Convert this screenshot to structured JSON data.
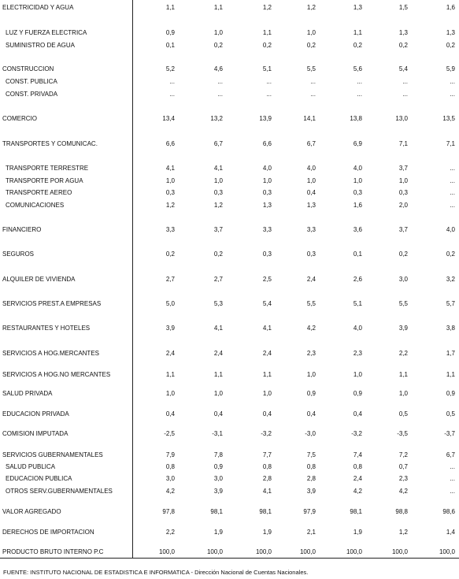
{
  "table": {
    "rows": [
      [
        "ELECTRICIDAD Y AGUA",
        "1,1",
        "1,1",
        "1,2",
        "1,2",
        "1,3",
        "1,5",
        "1,6"
      ],
      [
        "LUZ Y FUERZA ELECTRICA",
        "0,9",
        "1,0",
        "1,1",
        "1,0",
        "1,1",
        "1,3",
        "1,3"
      ],
      [
        "SUMINISTRO DE AGUA",
        "0,1",
        "0,2",
        "0,2",
        "0,2",
        "0,2",
        "0,2",
        "0,2"
      ],
      [
        "CONSTRUCCION",
        "5,2",
        "4,6",
        "5,1",
        "5,5",
        "5,6",
        "5,4",
        "5,9"
      ],
      [
        "CONST. PUBLICA",
        "...",
        "...",
        "...",
        "...",
        "...",
        "...",
        "..."
      ],
      [
        "CONST. PRIVADA",
        "...",
        "...",
        "...",
        "...",
        "...",
        "...",
        "..."
      ],
      [
        "COMERCIO",
        "13,4",
        "13,2",
        "13,9",
        "14,1",
        "13,8",
        "13,0",
        "13,5"
      ],
      [
        "TRANSPORTES Y COMUNICAC.",
        "6,6",
        "6,7",
        "6,6",
        "6,7",
        "6,9",
        "7,1",
        "7,1"
      ],
      [
        "TRANSPORTE TERRESTRE",
        "4,1",
        "4,1",
        "4,0",
        "4,0",
        "4,0",
        "3,7",
        "..."
      ],
      [
        "TRANSPORTE POR AGUA",
        "1,0",
        "1,0",
        "1,0",
        "1,0",
        "1,0",
        "1,0",
        "..."
      ],
      [
        "TRANSPORTE AEREO",
        "0,3",
        "0,3",
        "0,3",
        "0,4",
        "0,3",
        "0,3",
        "..."
      ],
      [
        "COMUNICACIONES",
        "1,2",
        "1,2",
        "1,3",
        "1,3",
        "1,6",
        "2,0",
        "..."
      ],
      [
        "FINANCIERO",
        "3,3",
        "3,7",
        "3,3",
        "3,3",
        "3,6",
        "3,7",
        "4,0"
      ],
      [
        "SEGUROS",
        "0,2",
        "0,2",
        "0,3",
        "0,3",
        "0,1",
        "0,2",
        "0,2"
      ],
      [
        "ALQUILER DE VIVIENDA",
        "2,7",
        "2,7",
        "2,5",
        "2,4",
        "2,6",
        "3,0",
        "3,2"
      ],
      [
        "SERVICIOS PREST.A EMPRESAS",
        "5,0",
        "5,3",
        "5,4",
        "5,5",
        "5,1",
        "5,5",
        "5,7"
      ],
      [
        "RESTAURANTES Y HOTELES",
        "3,9",
        "4,1",
        "4,1",
        "4,2",
        "4,0",
        "3,9",
        "3,8"
      ],
      [
        "SERVICIOS A HOG.MERCANTES",
        "2,4",
        "2,4",
        "2,4",
        "2,3",
        "2,3",
        "2,2",
        "1,7"
      ],
      [
        "SERVICIOS A HOG.NO MERCANTES",
        "1,1",
        "1,1",
        "1,1",
        "1,0",
        "1,0",
        "1,1",
        "1,1"
      ],
      [
        "SALUD PRIVADA",
        "1,0",
        "1,0",
        "1,0",
        "0,9",
        "0,9",
        "1,0",
        "0,9"
      ],
      [
        "EDUCACION PRIVADA",
        "0,4",
        "0,4",
        "0,4",
        "0,4",
        "0,4",
        "0,5",
        "0,5"
      ],
      [
        "COMISION IMPUTADA",
        "-2,5",
        "-3,1",
        "-3,2",
        "-3,0",
        "-3,2",
        "-3,5",
        "-3,7"
      ],
      [
        "SERVICIOS GUBERNAMENTALES",
        "7,9",
        "7,8",
        "7,7",
        "7,5",
        "7,4",
        "7,2",
        "6,7"
      ],
      [
        "SALUD PUBLICA",
        "0,8",
        "0,9",
        "0,8",
        "0,8",
        "0,8",
        "0,7",
        "..."
      ],
      [
        "EDUCACION PUBLICA",
        "3,0",
        "3,0",
        "2,8",
        "2,8",
        "2,4",
        "2,3",
        "..."
      ],
      [
        "OTROS SERV.GUBERNAMENTALES",
        "4,2",
        "3,9",
        "4,1",
        "3,9",
        "4,2",
        "4,2",
        "..."
      ],
      [
        "VALOR AGREGADO",
        "97,8",
        "98,1",
        "98,1",
        "97,9",
        "98,1",
        "98,8",
        "98,6"
      ],
      [
        "DERECHOS DE IMPORTACION",
        "2,2",
        "1,9",
        "1,9",
        "2,1",
        "1,9",
        "1,2",
        "1,4"
      ],
      [
        "PRODUCTO BRUTO INTERNO P.C",
        "100,0",
        "100,0",
        "100,0",
        "100,0",
        "100,0",
        "100,0",
        "100,0"
      ]
    ]
  },
  "footer": {
    "source": "FUENTE: INSTITUTO NACIONAL DE ESTADISTICA E INFORMATICA - Dirección Nacional de Cuentas Nacionales."
  }
}
